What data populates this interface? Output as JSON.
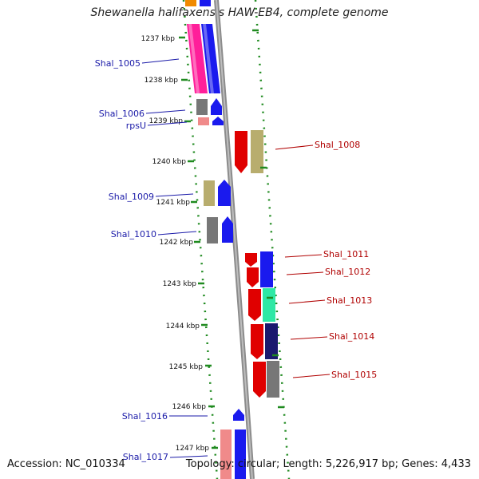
{
  "title": "Shewanella halifaxensis HAW-EB4, complete genome",
  "footer": {
    "accession": "Accession: NC_010334",
    "topology": "Topology: circular; Length: 5,226,917 bp; Genes: 4,433"
  },
  "ticks": [
    "1237 kbp",
    "1238 kbp",
    "1239 kbp",
    "1240 kbp",
    "1241 kbp",
    "1242 kbp",
    "1243 kbp",
    "1244 kbp",
    "1245 kbp",
    "1246 kbp",
    "1247 kbp"
  ],
  "genes_left": [
    "Shal_1005",
    "Shal_1006",
    "rpsU",
    "Shal_1009",
    "Shal_1010",
    "Shal_1016",
    "Shal_1017"
  ],
  "genes_right": [
    "Shal_1008",
    "Shal_1011",
    "Shal_1012",
    "Shal_1013",
    "Shal_1014",
    "Shal_1015"
  ],
  "colors": {
    "left_label": "#1a1aa8",
    "right_label": "#b00000",
    "tick": "#1f8a1f",
    "backbone": "#8c8c8c"
  }
}
